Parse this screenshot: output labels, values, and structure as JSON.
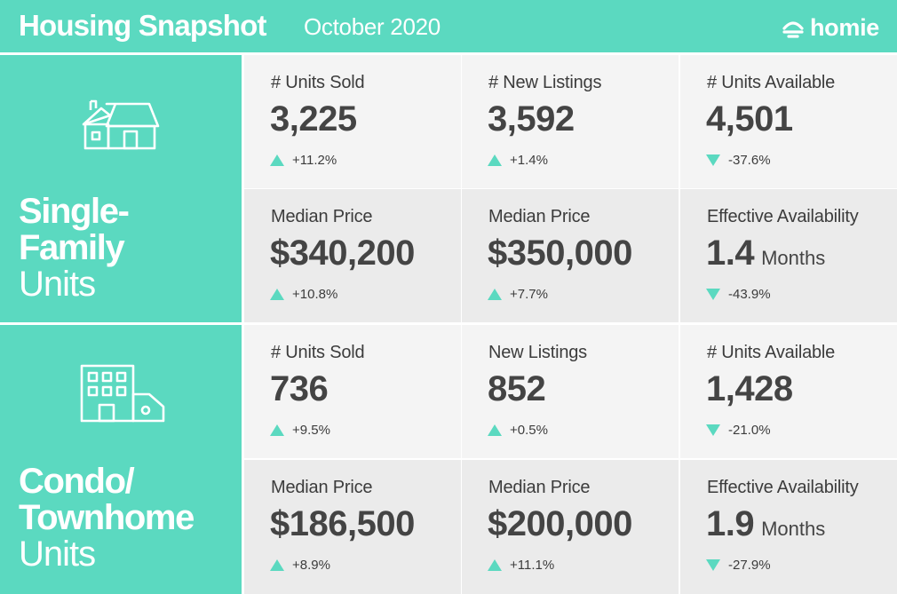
{
  "header": {
    "title": "Housing Snapshot",
    "date": "October 2020",
    "brand": "homie",
    "brand_icon": "homie-logo-icon"
  },
  "colors": {
    "accent": "#5bd9c0",
    "cell_light": "#f4f4f4",
    "cell_dark": "#ebebeb",
    "text": "#444444"
  },
  "single_family": {
    "label_line1": "Single-",
    "label_line2": "Family",
    "label_line3": "Units",
    "icon": "house-icon",
    "stats": [
      {
        "label": "# Units Sold",
        "value": "3,225",
        "unit": "",
        "change": "+11.2%",
        "direction": "up"
      },
      {
        "label": "# New Listings",
        "value": "3,592",
        "unit": "",
        "change": "+1.4%",
        "direction": "up"
      },
      {
        "label": "# Units Available",
        "value": "4,501",
        "unit": "",
        "change": "-37.6%",
        "direction": "down"
      },
      {
        "label": "Median Price",
        "value": "$340,200",
        "unit": "",
        "change": "+10.8%",
        "direction": "up"
      },
      {
        "label": "Median Price",
        "value": "$350,000",
        "unit": "",
        "change": "+7.7%",
        "direction": "up"
      },
      {
        "label": "Effective Availability",
        "value": "1.4",
        "unit": "Months",
        "change": "-43.9%",
        "direction": "down"
      }
    ]
  },
  "condo": {
    "label_line1": "Condo/",
    "label_line2": "Townhome",
    "label_line3": "Units",
    "icon": "building-icon",
    "stats": [
      {
        "label": "# Units Sold",
        "value": "736",
        "unit": "",
        "change": "+9.5%",
        "direction": "up"
      },
      {
        "label": "New Listings",
        "value": "852",
        "unit": "",
        "change": "+0.5%",
        "direction": "up"
      },
      {
        "label": "# Units Available",
        "value": "1,428",
        "unit": "",
        "change": "-21.0%",
        "direction": "down"
      },
      {
        "label": "Median Price",
        "value": "$186,500",
        "unit": "",
        "change": "+8.9%",
        "direction": "up"
      },
      {
        "label": "Median Price",
        "value": "$200,000",
        "unit": "",
        "change": "+11.1%",
        "direction": "up"
      },
      {
        "label": "Effective Availability",
        "value": "1.9",
        "unit": "Months",
        "change": "-27.9%",
        "direction": "down"
      }
    ]
  }
}
